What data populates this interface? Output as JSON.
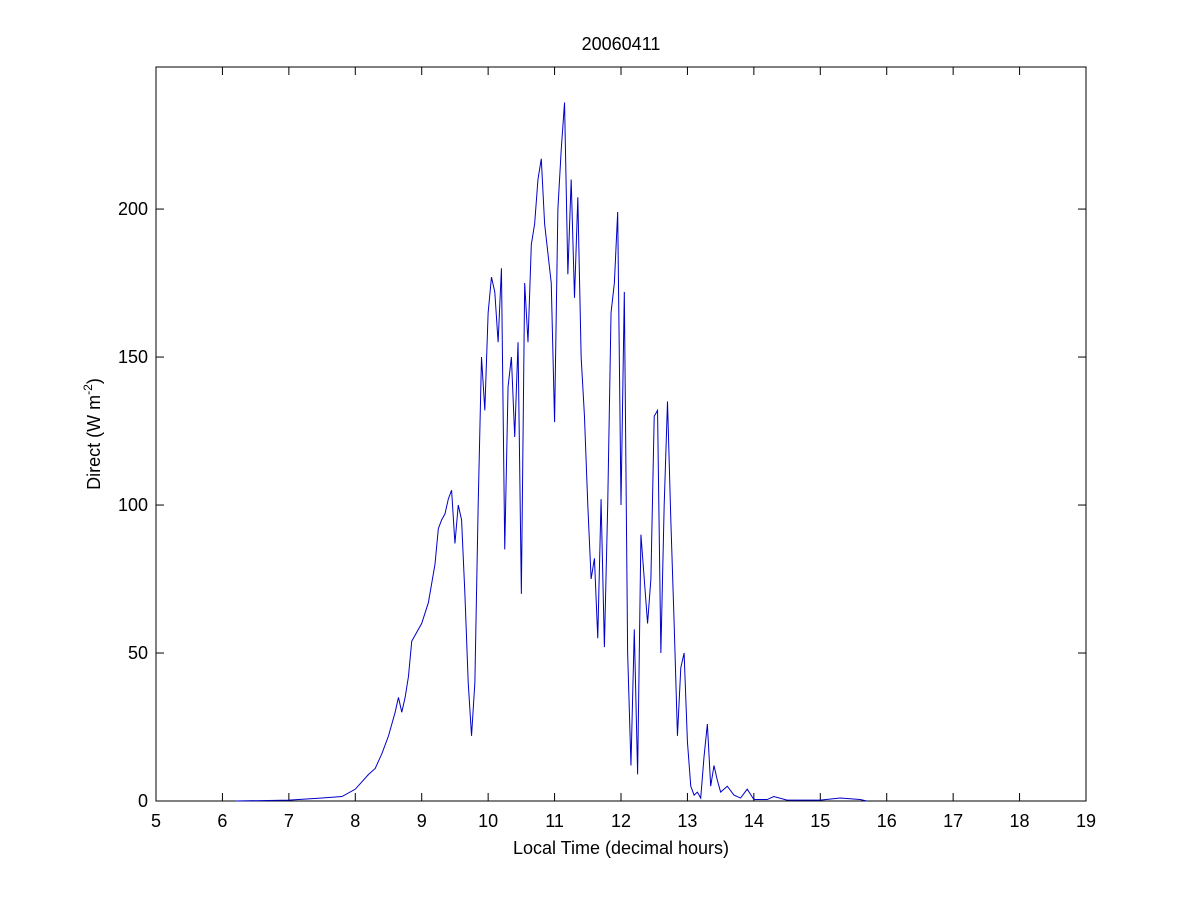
{
  "chart_data": {
    "type": "line",
    "title": "20060411",
    "xlabel": "Local Time (decimal hours)",
    "ylabel_parts": [
      "Direct (W m",
      "-2",
      ")"
    ],
    "x": [
      6.2,
      7.0,
      7.5,
      7.8,
      8.0,
      8.2,
      8.3,
      8.4,
      8.5,
      8.6,
      8.65,
      8.7,
      8.75,
      8.8,
      8.85,
      8.9,
      9.0,
      9.1,
      9.2,
      9.25,
      9.3,
      9.35,
      9.4,
      9.45,
      9.5,
      9.55,
      9.6,
      9.65,
      9.7,
      9.75,
      9.8,
      9.85,
      9.9,
      9.95,
      10.0,
      10.05,
      10.1,
      10.15,
      10.2,
      10.25,
      10.3,
      10.35,
      10.4,
      10.45,
      10.5,
      10.55,
      10.6,
      10.65,
      10.7,
      10.75,
      10.8,
      10.85,
      10.9,
      10.95,
      11.0,
      11.05,
      11.1,
      11.15,
      11.2,
      11.25,
      11.3,
      11.35,
      11.4,
      11.45,
      11.5,
      11.55,
      11.6,
      11.65,
      11.7,
      11.75,
      11.8,
      11.85,
      11.9,
      11.95,
      12.0,
      12.05,
      12.1,
      12.15,
      12.2,
      12.25,
      12.3,
      12.35,
      12.4,
      12.45,
      12.5,
      12.55,
      12.6,
      12.65,
      12.7,
      12.75,
      12.8,
      12.85,
      12.9,
      12.95,
      13.0,
      13.05,
      13.1,
      13.15,
      13.2,
      13.25,
      13.3,
      13.35,
      13.4,
      13.45,
      13.5,
      13.6,
      13.7,
      13.8,
      13.9,
      14.0,
      14.2,
      14.3,
      14.5,
      15.0,
      15.3,
      15.6,
      15.7
    ],
    "series": [
      {
        "color": "#0000c8",
        "values": [
          0,
          0.3,
          1,
          1.5,
          4,
          9,
          11,
          16,
          22,
          30,
          35,
          30,
          35,
          42,
          54,
          56,
          60,
          67,
          80,
          92,
          95,
          97,
          102,
          105,
          87,
          100,
          95,
          70,
          40,
          22,
          40,
          100,
          150,
          132,
          165,
          177,
          172,
          155,
          180,
          85,
          140,
          150,
          123,
          155,
          70,
          175,
          155,
          188,
          195,
          210,
          217,
          195,
          185,
          175,
          128,
          200,
          220,
          236,
          178,
          210,
          170,
          204,
          150,
          130,
          100,
          75,
          82,
          55,
          102,
          52,
          100,
          165,
          175,
          199,
          100,
          172,
          50,
          12,
          58,
          9,
          90,
          75,
          60,
          75,
          130,
          132,
          50,
          100,
          135,
          95,
          60,
          22,
          45,
          50,
          20,
          5,
          2,
          3,
          1,
          15,
          26,
          5,
          12,
          7,
          3,
          5,
          2,
          1,
          4,
          0.5,
          0.5,
          1.5,
          0.3,
          0.3,
          1,
          0.5,
          0
        ]
      }
    ],
    "xlim": [
      5,
      19
    ],
    "xticks": [
      5,
      6,
      7,
      8,
      9,
      10,
      11,
      12,
      13,
      14,
      15,
      16,
      17,
      18,
      19
    ],
    "ylim": [
      0,
      248
    ],
    "yticks": [
      0,
      50,
      100,
      150,
      200
    ]
  }
}
